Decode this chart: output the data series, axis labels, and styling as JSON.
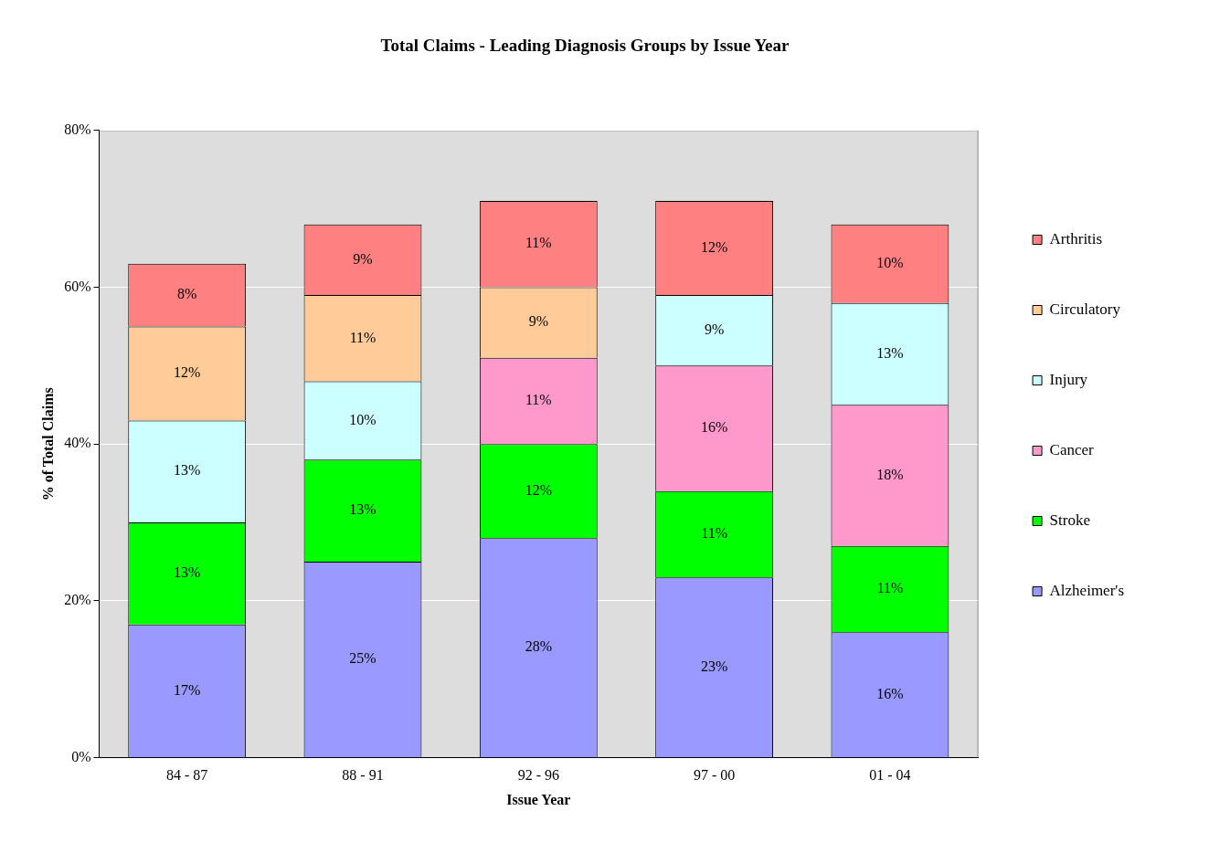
{
  "chart_data": {
    "type": "bar",
    "stacked": true,
    "title": "Total Claims - Leading Diagnosis Groups by Issue Year",
    "xlabel": "Issue Year",
    "ylabel": "% of Total Claims",
    "categories": [
      "84 - 87",
      "88 - 91",
      "92 - 96",
      "97 - 00",
      "01 - 04"
    ],
    "ylim": [
      0,
      80
    ],
    "yticks": [
      {
        "value": 0,
        "label": "0%"
      },
      {
        "value": 20,
        "label": "20%"
      },
      {
        "value": 40,
        "label": "40%"
      },
      {
        "value": 60,
        "label": "60%"
      },
      {
        "value": 80,
        "label": "80%"
      }
    ],
    "grid": "y",
    "legend": "right",
    "series": [
      {
        "name": "Alzheimer's",
        "color": "#9999ff",
        "values": [
          17,
          25,
          28,
          23,
          16
        ],
        "value_labels": [
          "17%",
          "25%",
          "28%",
          "23%",
          "16%"
        ]
      },
      {
        "name": "Stroke",
        "color": "#00ff00",
        "values": [
          13,
          13,
          12,
          11,
          11
        ],
        "value_labels": [
          "13%",
          "13%",
          "12%",
          "11%",
          "11%"
        ]
      },
      {
        "name": "Cancer",
        "color": "#ff99cc",
        "values": [
          null,
          null,
          11,
          16,
          18
        ],
        "value_labels": [
          null,
          null,
          "11%",
          "16%",
          "18%"
        ]
      },
      {
        "name": "Injury",
        "color": "#ccffff",
        "values": [
          13,
          10,
          null,
          9,
          13
        ],
        "value_labels": [
          "13%",
          "10%",
          null,
          "9%",
          "13%"
        ]
      },
      {
        "name": "Circulatory",
        "color": "#ffcc99",
        "values": [
          12,
          11,
          9,
          null,
          null
        ],
        "value_labels": [
          "12%",
          "11%",
          "9%",
          null,
          null
        ]
      },
      {
        "name": "Arthritis",
        "color": "#ff8080",
        "values": [
          8,
          9,
          11,
          12,
          10
        ],
        "value_labels": [
          "8%",
          "9%",
          "11%",
          "12%",
          "10%"
        ]
      }
    ]
  }
}
